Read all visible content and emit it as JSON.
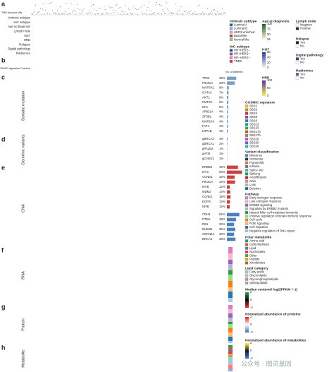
{
  "panels": {
    "a": {
      "label": "a",
      "tmb_label": "TMB (mut per Mb)",
      "tracks": [
        "Intrinsic subtype",
        "IHC subtype",
        "Age at diagnosis",
        "Lymph node",
        "Ki67",
        "HRD",
        "Relapse",
        "Digital pathology",
        "Radiomics"
      ]
    },
    "b": {
      "label": "b",
      "track": "COSMIC signature Fraction"
    },
    "c": {
      "label": "c",
      "title": "Somatic mutation",
      "count_title": "No. of patients",
      "genes": [
        {
          "name": "TP53",
          "pct": {
            "value": 39,
            "label": "39%"
          }
        },
        {
          "name": "PIK3CA",
          "pct": {
            "value": 33,
            "label": "33%"
          }
        },
        {
          "name": "MAP3K1",
          "pct": {
            "value": 8,
            "label": "8%"
          }
        },
        {
          "name": "GATA3",
          "pct": {
            "value": 7,
            "label": "7%"
          }
        },
        {
          "name": "AKT1",
          "pct": {
            "value": 6,
            "label": "6%"
          }
        },
        {
          "name": "KMT2C",
          "pct": {
            "value": 6,
            "label": "6%"
          }
        },
        {
          "name": "NF1",
          "pct": {
            "value": 5,
            "label": "5%"
          }
        },
        {
          "name": "ARID1A",
          "pct": {
            "value": 4,
            "label": "4%"
          }
        },
        {
          "name": "SF3B1",
          "pct": {
            "value": 4,
            "label": "4%"
          }
        },
        {
          "name": "MAP2K4",
          "pct": {
            "value": 4,
            "label": "4%"
          }
        },
        {
          "name": "FAT4",
          "pct": {
            "value": 4,
            "label": "4%"
          }
        },
        {
          "name": "LRP1B",
          "pct": {
            "value": 4,
            "label": "4%"
          }
        }
      ]
    },
    "d": {
      "label": "d",
      "title": "Germline variants",
      "genes": [
        {
          "name": "gBRCA2",
          "pct": {
            "value": 3,
            "label": "3%"
          }
        },
        {
          "name": "gBRCA1",
          "pct": {
            "value": 2,
            "label": "2%"
          }
        },
        {
          "name": "gPALB2",
          "pct": {
            "value": 1,
            "label": "1%"
          }
        },
        {
          "name": "gATM",
          "pct": {
            "value": 1,
            "label": "1%"
          }
        },
        {
          "name": "gCHEK2",
          "pct": {
            "value": 1,
            "label": "1%"
          }
        }
      ]
    },
    "e": {
      "label": "e",
      "title": "CNA",
      "genes": [
        {
          "name": "ERBB2",
          "pct": {
            "value": 46,
            "label": "46%"
          },
          "color": "#c8403f"
        },
        {
          "name": "MYC",
          "pct": {
            "value": 63,
            "label": "63%"
          },
          "color": "#c8403f"
        },
        {
          "name": "CCND1",
          "pct": {
            "value": 32,
            "label": "32%"
          },
          "color": "#c8403f"
        },
        {
          "name": "PIK3CA",
          "pct": {
            "value": 34,
            "label": "34%"
          },
          "color": "#c8403f"
        },
        {
          "name": "MYB",
          "pct": {
            "value": 12,
            "label": "12%"
          },
          "color": "#c8403f"
        },
        {
          "name": "MDM2",
          "pct": {
            "value": 14,
            "label": "14%"
          },
          "color": "#c8403f"
        },
        {
          "name": "CCNE1",
          "pct": {
            "value": 15,
            "label": "15%"
          },
          "color": "#c8403f"
        },
        {
          "name": "EGFR",
          "pct": {
            "value": 13,
            "label": "13%"
          },
          "color": "#c8403f"
        },
        {
          "name": "NFIB",
          "pct": {
            "value": 12,
            "label": "12%"
          },
          "color": "#c8403f"
        },
        {
          "name": "CDH1",
          "pct": {
            "value": 52,
            "label": "52%"
          },
          "color": "#4f7fb8"
        },
        {
          "name": "PTEN",
          "pct": {
            "value": 38,
            "label": "38%"
          },
          "color": "#4f7fb8"
        },
        {
          "name": "RB1",
          "pct": {
            "value": 30,
            "label": "30%"
          },
          "color": "#4f7fb8"
        },
        {
          "name": "BUB1B",
          "pct": {
            "value": 35,
            "label": "35%"
          },
          "color": "#4f7fb8"
        },
        {
          "name": "CDKN2A",
          "pct": {
            "value": 30,
            "label": "30%"
          },
          "color": "#4f7fb8"
        },
        {
          "name": "BRCA1",
          "pct": {
            "value": 36,
            "label": "36%"
          },
          "color": "#4f7fb8"
        }
      ]
    },
    "f": {
      "label": "f",
      "title": "RNA"
    },
    "g": {
      "label": "g",
      "title": "Protein"
    },
    "h": {
      "label": "h",
      "title": "Metabolite"
    }
  },
  "legends": [
    {
      "title": "Intrinsic subtype",
      "items": [
        {
          "label": "Luminal A",
          "color": "#2a5fa8"
        },
        {
          "label": "Luminal B",
          "color": "#7fb2dc"
        },
        {
          "label": "HER2-enriched",
          "color": "#d9a7c7"
        },
        {
          "label": "Basal-like",
          "color": "#d7302f"
        },
        {
          "label": "Normal-like",
          "color": "#8fc98a"
        }
      ]
    },
    {
      "title": "IHC subtype",
      "items": [
        {
          "label": "HR+HER2−",
          "color": "#1f4e96"
        },
        {
          "label": "HR+HER2+",
          "color": "#8a5aa6"
        },
        {
          "label": "HR−HER2+",
          "color": "#e07fb1"
        },
        {
          "label": "TNBC",
          "color": "#d63b34"
        }
      ]
    },
    {
      "title": "Age at diagnosis",
      "gradient": [
        "#1f5c3a",
        "#f1f5d0"
      ],
      "ticks": [
        100,
        75,
        50,
        25
      ]
    },
    {
      "title": "Ki67",
      "gradient": [
        "#2b3f8f",
        "#e9eef9"
      ],
      "ticks": [
        60,
        40,
        20,
        0
      ]
    },
    {
      "title": "HRD",
      "gradient": [
        "#5b3a8c",
        "#f5e66a"
      ],
      "ticks": [
        100,
        50,
        0
      ]
    },
    {
      "title": "Lymph node",
      "items": [
        {
          "label": "Negative",
          "color": "#ffffff"
        },
        {
          "label": "Positive",
          "color": "#222222"
        }
      ]
    },
    {
      "title": "Relapse",
      "items": [
        {
          "label": "Yes",
          "color": "#222222"
        },
        {
          "label": "No",
          "color": "#ffffff"
        }
      ]
    },
    {
      "title": "Digital pathology",
      "items": [
        {
          "label": "Yes",
          "color": "#4b3b8f"
        },
        {
          "label": "No",
          "color": "#ffffff"
        }
      ]
    },
    {
      "title": "Radiomics",
      "items": [
        {
          "label": "Yes",
          "color": "#6b4f9f"
        },
        {
          "label": "No",
          "color": "#ffffff"
        }
      ]
    },
    {
      "title": "COSMIC signature",
      "items": [
        {
          "label": "SBS1",
          "color": "#f1c40f"
        },
        {
          "label": "SBS2",
          "color": "#e67e22"
        },
        {
          "label": "SBS3",
          "color": "#c0392b"
        },
        {
          "label": "SBS5",
          "color": "#8e44ad"
        },
        {
          "label": "SBS6",
          "color": "#2980b9"
        },
        {
          "label": "SBS13",
          "color": "#16a085"
        },
        {
          "label": "SBS15",
          "color": "#27ae60"
        },
        {
          "label": "SBS17a",
          "color": "#d35400"
        },
        {
          "label": "SBS17b",
          "color": "#7f8c8d"
        },
        {
          "label": "SBS18",
          "color": "#e84393"
        },
        {
          "label": "SBS20",
          "color": "#6c5ce7"
        },
        {
          "label": "SBS26",
          "color": "#00cec9"
        }
      ]
    },
    {
      "title": "Variant classification",
      "items": [
        {
          "label": "Missense",
          "color": "#4c8bc9"
        },
        {
          "label": "Nonsense",
          "color": "#333333"
        },
        {
          "label": "Frameshift",
          "color": "#e07b39"
        },
        {
          "label": "Inframe",
          "color": "#9b59b6"
        },
        {
          "label": "Splice site",
          "color": "#2ecc71"
        },
        {
          "label": "Splicing",
          "color": "#16a085"
        },
        {
          "label": "Amplification",
          "color": "#b2182b"
        },
        {
          "label": "Gain",
          "color": "#ef8a8a"
        },
        {
          "label": "Loss",
          "color": "#92c5de"
        },
        {
          "label": "Deletion",
          "color": "#2166ac"
        }
      ]
    },
    {
      "title": "Pathway",
      "items": [
        {
          "label": "Early estrogen response",
          "color": "#e377c2"
        },
        {
          "label": "Late estrogen response",
          "color": "#f7b6d2"
        },
        {
          "label": "ERBB2 signaling",
          "color": "#9467bd"
        },
        {
          "label": "Signaling by ERBB2 mutants",
          "color": "#c5b0d5"
        },
        {
          "label": "Natural killer cell-mediated immunity",
          "color": "#2ca02c"
        },
        {
          "label": "Positive regulation of innate immune response",
          "color": "#98df8a"
        },
        {
          "label": "Cell cycle",
          "color": "#ff7f0e"
        },
        {
          "label": "PI3K signaling",
          "color": "#ffbb78"
        },
        {
          "label": "Cell migration",
          "color": "#1f77b4"
        },
        {
          "label": "Negative regulation of DNA repair",
          "color": "#aec7e8"
        }
      ]
    },
    {
      "title": "Polar metabolite",
      "items": [
        {
          "label": "Amino acid",
          "color": "#1b9e77"
        },
        {
          "label": "Carbohydrates",
          "color": "#d95f02"
        },
        {
          "label": "Lipid",
          "color": "#7570b3"
        },
        {
          "label": "Nucleotides",
          "color": "#e7298a"
        },
        {
          "label": "Other",
          "color": "#66a61e"
        },
        {
          "label": "Peptide",
          "color": "#e6ab02"
        },
        {
          "label": "Xenobiotics",
          "color": "#a6761d"
        }
      ]
    },
    {
      "title": "Lipid category",
      "items": [
        {
          "label": "Fatty acids",
          "color": "#8dd3c7"
        },
        {
          "label": "Glycerolipids",
          "color": "#bebada"
        },
        {
          "label": "Glycerophospholipids",
          "color": "#fb8072"
        },
        {
          "label": "Sphingolipids",
          "color": "#80b1d3"
        }
      ]
    },
    {
      "title": "Median centered log2(FPKM + 1)",
      "gradient": [
        "#1a9850",
        "#000000",
        "#d73027"
      ],
      "ticks": [
        2,
        0,
        -2
      ]
    },
    {
      "title": "Normalized abundance of proteins",
      "gradient": [
        "#d73027",
        "#ffffff",
        "#4575b4"
      ],
      "ticks": [
        2,
        0,
        -2
      ]
    },
    {
      "title": "Normalized abundance of metabolites",
      "gradient": [
        "#f7e53b",
        "#111111",
        "#3b6fd6"
      ],
      "ticks": [
        2,
        0,
        -2
      ]
    }
  ],
  "watermark": "公众号 · 图灵基因"
}
